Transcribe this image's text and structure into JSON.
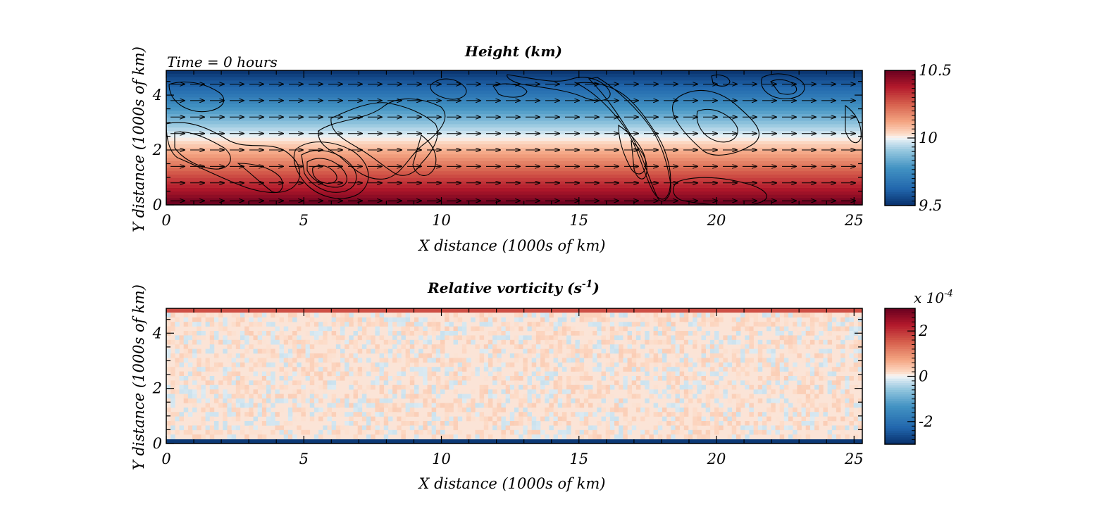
{
  "figure": {
    "time_label": "Time = 0 hours"
  },
  "chart_data": [
    {
      "type": "heatmap",
      "title": "Height (km)",
      "xlabel": "X distance (1000s of km)",
      "ylabel": "Y distance (1000s of km)",
      "xlim": [
        0,
        25.3
      ],
      "ylim": [
        0,
        4.9
      ],
      "xticks": [
        0,
        5,
        10,
        15,
        20,
        25
      ],
      "yticks": [
        0,
        2,
        4
      ],
      "value_range": [
        9.5,
        10.5
      ],
      "colorbar": {
        "ticks": [
          9.5,
          10,
          10.5
        ],
        "tick_labels": [
          "9.5",
          "10",
          "10.5"
        ],
        "multiplier": ""
      },
      "field": "height decreasing linearly with Y from about 10.5 km at Y=0 to about 9.5 km at Y=4.9",
      "wind_vectors": {
        "direction": "eastward",
        "rows_y": [
          0.15,
          0.8,
          1.4,
          2.0,
          2.6,
          3.2,
          3.8,
          4.4
        ]
      },
      "overlay": "black contour lines (continental outlines / orography)"
    },
    {
      "type": "heatmap",
      "title": "Relative vorticity (s",
      "title_exponent": "-1",
      "title_close": ")",
      "xlabel": "X distance (1000s of km)",
      "ylabel": "Y distance (1000s of km)",
      "xlim": [
        0,
        25.3
      ],
      "ylim": [
        0,
        4.9
      ],
      "xticks": [
        0,
        5,
        10,
        15,
        20,
        25
      ],
      "yticks": [
        0,
        2,
        4
      ],
      "value_range": [
        -3,
        3
      ],
      "colorbar": {
        "ticks": [
          -2,
          0,
          2
        ],
        "tick_labels": [
          "-2",
          "0",
          "2"
        ],
        "multiplier_base": "x 10",
        "multiplier_exp": "-4"
      },
      "field": "near zero with small noise (~0.2e-4); positive band ~1.5e-4 at top edge, strong negative ~-3e-4 at bottom edge"
    }
  ],
  "colors": {
    "map_low": "#08306b",
    "map_mid": "#f7f7f7",
    "map_high": "#67001f"
  }
}
